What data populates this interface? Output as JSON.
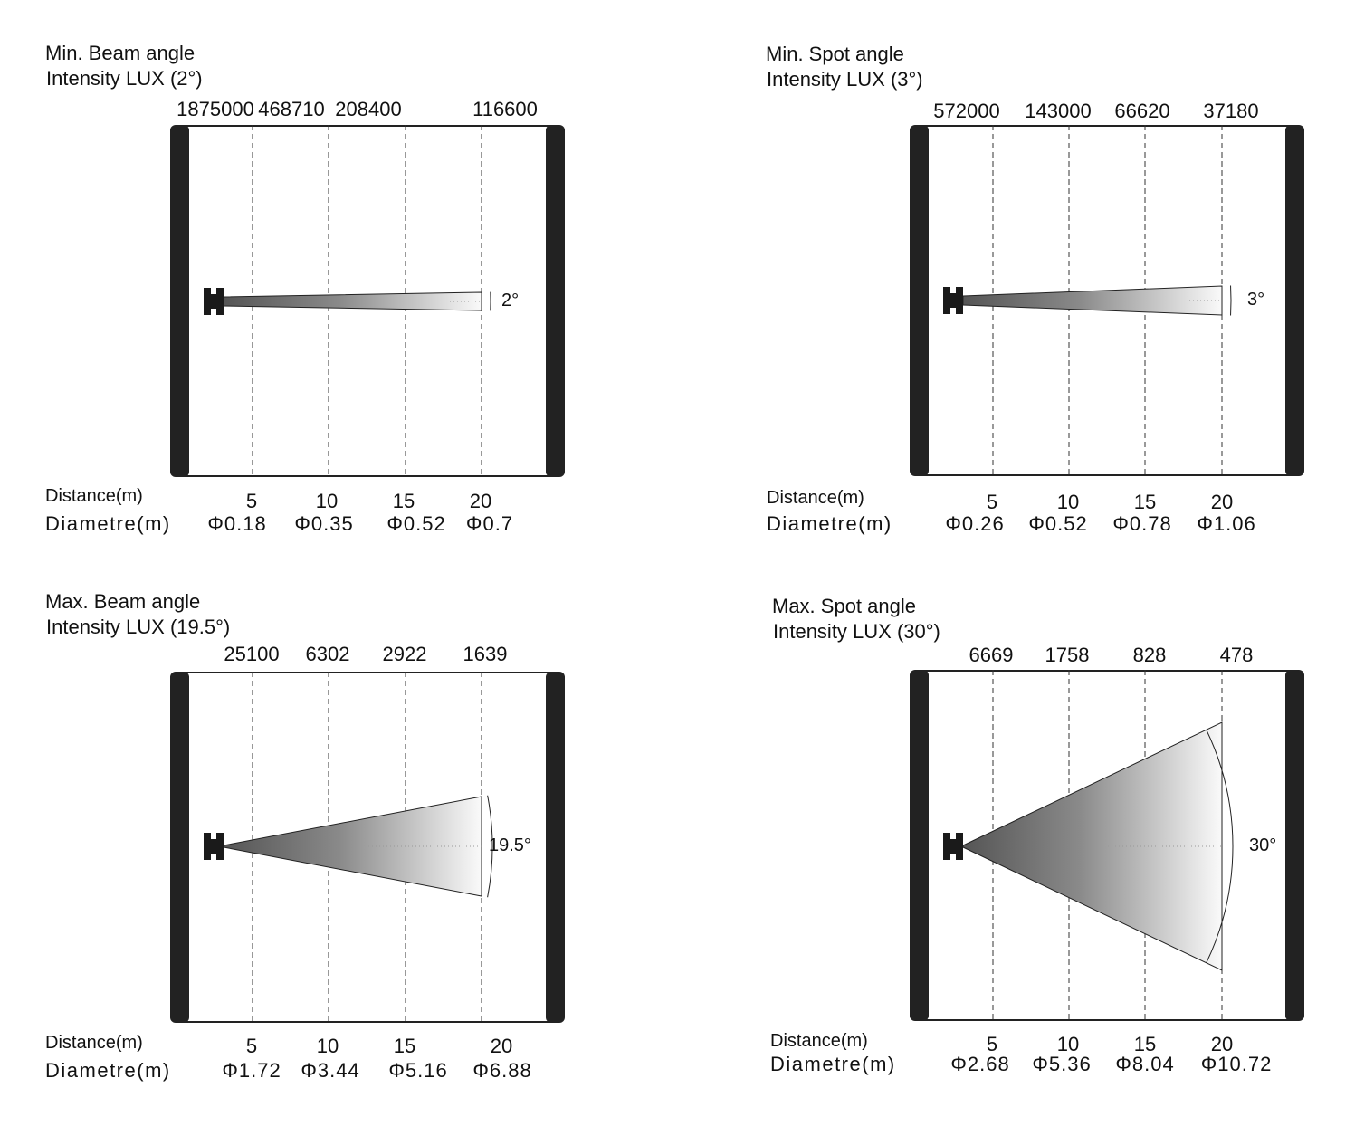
{
  "common": {
    "distance_label": "Distance(m)",
    "diametre_label": "Diametre(m)",
    "distances": [
      "5",
      "10",
      "15",
      "20"
    ]
  },
  "panels": [
    {
      "title": "Min. Beam angle",
      "subtitle": "Intensity LUX (2°)",
      "lux": [
        "1875000",
        "468710",
        "208400",
        "116600"
      ],
      "diameters": [
        "Φ0.18",
        "Φ0.35",
        "Φ0.52",
        "Φ0.7"
      ],
      "angle_label": "2°"
    },
    {
      "title": "Min. Spot angle",
      "subtitle": "Intensity LUX (3°)",
      "lux": [
        "572000",
        "143000",
        "66620",
        "37180"
      ],
      "diameters": [
        "Φ0.26",
        "Φ0.52",
        "Φ0.78",
        "Φ1.06"
      ],
      "angle_label": "3°"
    },
    {
      "title": "Max. Beam angle",
      "subtitle": "Intensity LUX (19.5°)",
      "lux": [
        "25100",
        "6302",
        "2922",
        "1639"
      ],
      "diameters": [
        "Φ1.72",
        "Φ3.44",
        "Φ5.16",
        "Φ6.88"
      ],
      "angle_label": "19.5°"
    },
    {
      "title": "Max. Spot angle",
      "subtitle": "Intensity LUX (30°)",
      "lux": [
        "6669",
        "1758",
        "828",
        "478"
      ],
      "diameters": [
        "Φ2.68",
        "Φ5.36",
        "Φ8.04",
        "Φ10.72"
      ],
      "angle_label": "30°"
    }
  ]
}
